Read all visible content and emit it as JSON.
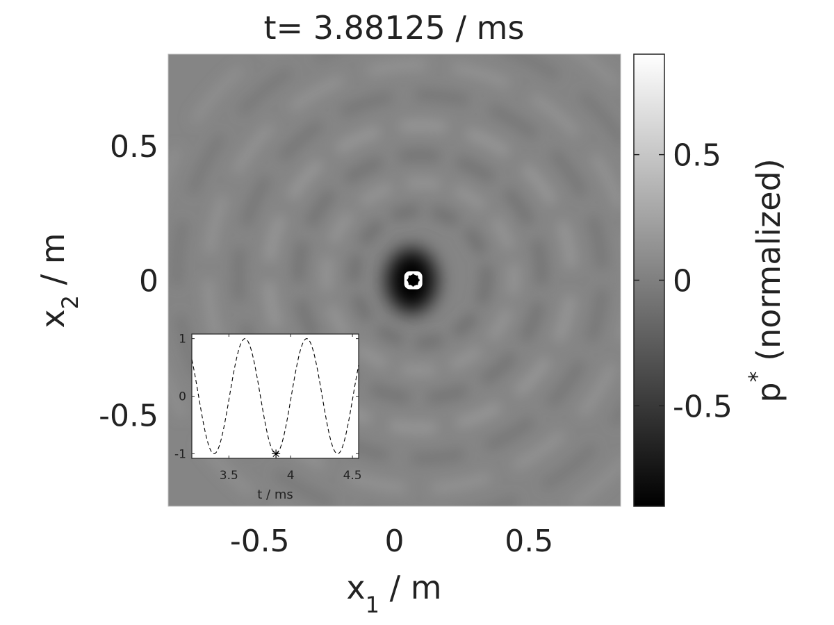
{
  "chart_data": [
    {
      "type": "heatmap",
      "title": "t= 3.88125 / ms",
      "xlabel": {
        "base": "x",
        "sub": "1",
        "rest": " / m"
      },
      "ylabel": {
        "base": "x",
        "sub": "2",
        "rest": " / m"
      },
      "xlim": [
        -0.84,
        0.84
      ],
      "ylim": [
        -0.84,
        0.84
      ],
      "xticks": [
        -0.5,
        0,
        0.5
      ],
      "xtick_labels": [
        "-0.5",
        "0",
        "0.5"
      ],
      "yticks": [
        0.5,
        0,
        -0.5
      ],
      "ytick_labels": [
        "0.5",
        "0",
        "-0.5"
      ],
      "colormap": "gray",
      "colorbar": {
        "label": {
          "base": "p",
          "sup": "*",
          "rest": " (normalized)"
        },
        "clim": [
          -0.9,
          0.9
        ],
        "ticks": [
          0.5,
          0,
          -0.5
        ],
        "tick_labels": [
          "0.5",
          "0",
          "-0.5"
        ]
      },
      "source_marker": {
        "x": 0.07,
        "y": 0.0
      },
      "grid": false
    },
    {
      "type": "line",
      "xlabel": "t / ms",
      "ylabel": "",
      "xlim": [
        3.2,
        4.55
      ],
      "ylim": [
        -1.08,
        1.08
      ],
      "xticks": [
        3.5,
        4,
        4.5
      ],
      "xtick_labels": [
        "3.5",
        "4",
        "4.5"
      ],
      "yticks": [
        1,
        0,
        -1
      ],
      "ytick_labels": [
        "1",
        "0",
        "-1"
      ],
      "series": [
        {
          "style": "dashed",
          "color": "#000000",
          "amplitude": 1.0,
          "period_ms": 0.5,
          "peak_t_ms": 3.63
        }
      ],
      "marker": {
        "t": 3.88125,
        "value": -1.0,
        "symbol": "*"
      },
      "grid": false
    }
  ]
}
